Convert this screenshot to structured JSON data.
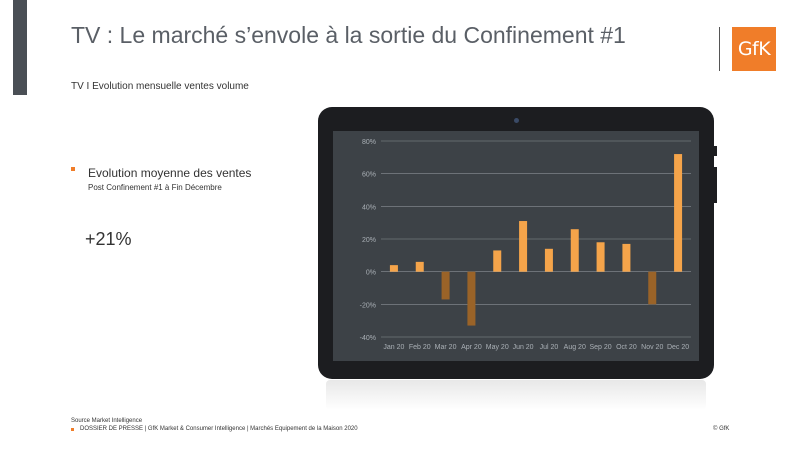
{
  "header": {
    "title": "TV : Le marché s’envole à la sortie du Confinement #1",
    "logo_text": "GfK"
  },
  "subtitle": "TV I Evolution mensuelle ventes volume",
  "metric": {
    "label": "Evolution moyenne des ventes",
    "sublabel": "Post Confinement #1 à Fin Décembre",
    "value": "+21%"
  },
  "footer": {
    "source": "Source Market Intelligence",
    "text": "DOSSIER DE PRESSE | GfK Market & Consumer Intelligence | Marchés Equipement de la Maison 2020",
    "copyright": "© GfK"
  },
  "colors": {
    "accent": "#f07d29",
    "bar_positive": "#f5a44a",
    "bar_negative": "#9a6328",
    "screen_bg": "#3d4247",
    "grid": "#8a8f95",
    "tick": "#aab0b6"
  },
  "chart_data": {
    "type": "bar",
    "categories": [
      "Jan 20",
      "Feb 20",
      "Mar 20",
      "Apr 20",
      "May 20",
      "Jun 20",
      "Jul 20",
      "Aug 20",
      "Sep 20",
      "Oct 20",
      "Nov 20",
      "Dec 20"
    ],
    "values": [
      4,
      6,
      -17,
      -33,
      13,
      31,
      14,
      26,
      18,
      17,
      -20,
      72
    ],
    "ylim": [
      -40,
      80
    ],
    "yticks": [
      -40,
      -20,
      0,
      20,
      40,
      60,
      80
    ],
    "ytick_labels": [
      "-40%",
      "-20%",
      "0%",
      "20%",
      "40%",
      "60%",
      "80%"
    ],
    "grid": true,
    "title": "",
    "xlabel": "",
    "ylabel": ""
  }
}
